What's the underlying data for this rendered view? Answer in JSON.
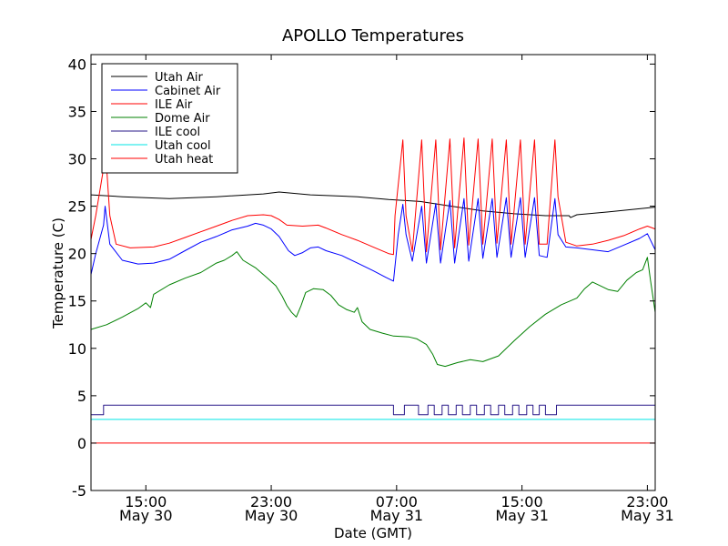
{
  "chart_data": {
    "type": "line",
    "title": "APOLLO Temperatures",
    "xlabel": "Date (GMT)",
    "ylabel": "Temperature (C)",
    "xlim": [
      0,
      36
    ],
    "ylim": [
      -5,
      41
    ],
    "yticks": [
      -5,
      0,
      5,
      10,
      15,
      20,
      25,
      30,
      35,
      40
    ],
    "ytick_labels": [
      "-5",
      "0",
      "5",
      "10",
      "15",
      "20",
      "25",
      "30",
      "35",
      "40"
    ],
    "xticks": [
      {
        "x": 3.5,
        "time": "15:00",
        "date": "May 30"
      },
      {
        "x": 11.5,
        "time": "23:00",
        "date": "May 30"
      },
      {
        "x": 19.5,
        "time": "07:00",
        "date": "May 31"
      },
      {
        "x": 27.5,
        "time": "15:00",
        "date": "May 31"
      },
      {
        "x": 35.5,
        "time": "23:00",
        "date": "May 31"
      }
    ],
    "legend_position": "top-left",
    "series": [
      {
        "name": "Utah Air",
        "color": "#000000",
        "points": [
          [
            0,
            26.2
          ],
          [
            2,
            26.0
          ],
          [
            5,
            25.8
          ],
          [
            8,
            26.0
          ],
          [
            11,
            26.3
          ],
          [
            12,
            26.5
          ],
          [
            14,
            26.2
          ],
          [
            17,
            26.0
          ],
          [
            19,
            25.7
          ],
          [
            21,
            25.5
          ],
          [
            23,
            25.0
          ],
          [
            25,
            24.5
          ],
          [
            27,
            24.2
          ],
          [
            29,
            24.0
          ],
          [
            30.5,
            24.0
          ],
          [
            30.6,
            23.8
          ],
          [
            31,
            24.1
          ],
          [
            33,
            24.4
          ],
          [
            36,
            24.9
          ]
        ]
      },
      {
        "name": "Cabinet Air",
        "color": "#0000ff",
        "points": [
          [
            0,
            17.8
          ],
          [
            0.3,
            20
          ],
          [
            0.8,
            23
          ],
          [
            0.9,
            25.0
          ],
          [
            1.2,
            21
          ],
          [
            2,
            19.3
          ],
          [
            3,
            18.9
          ],
          [
            4,
            19.0
          ],
          [
            5,
            19.4
          ],
          [
            6,
            20.3
          ],
          [
            7,
            21.2
          ],
          [
            8,
            21.8
          ],
          [
            9,
            22.5
          ],
          [
            10,
            22.9
          ],
          [
            10.5,
            23.2
          ],
          [
            11,
            23.0
          ],
          [
            11.5,
            22.6
          ],
          [
            12,
            21.8
          ],
          [
            12.6,
            20.3
          ],
          [
            13,
            19.8
          ],
          [
            13.5,
            20.1
          ],
          [
            14,
            20.6
          ],
          [
            14.5,
            20.7
          ],
          [
            15,
            20.3
          ],
          [
            16,
            19.8
          ],
          [
            17,
            19.0
          ],
          [
            18,
            18.2
          ],
          [
            18.8,
            17.5
          ],
          [
            19.3,
            17.1
          ],
          [
            19.6,
            22.0
          ],
          [
            19.9,
            25.2
          ],
          [
            20.1,
            22
          ],
          [
            20.5,
            19.2
          ],
          [
            21.1,
            25.0
          ],
          [
            21.4,
            19.0
          ],
          [
            22.0,
            25.3
          ],
          [
            22.3,
            19.0
          ],
          [
            22.9,
            25.6
          ],
          [
            23.2,
            19.0
          ],
          [
            23.8,
            25.8
          ],
          [
            24.1,
            19.2
          ],
          [
            24.7,
            25.8
          ],
          [
            25.0,
            19.5
          ],
          [
            25.6,
            25.8
          ],
          [
            25.9,
            19.6
          ],
          [
            26.5,
            25.9
          ],
          [
            26.8,
            19.6
          ],
          [
            27.4,
            25.9
          ],
          [
            27.7,
            19.6
          ],
          [
            28.3,
            25.9
          ],
          [
            28.6,
            19.8
          ],
          [
            29.1,
            19.6
          ],
          [
            29.6,
            25.8
          ],
          [
            29.8,
            22.0
          ],
          [
            30.3,
            20.7
          ],
          [
            31,
            20.6
          ],
          [
            32,
            20.4
          ],
          [
            33,
            20.2
          ],
          [
            34,
            20.9
          ],
          [
            35,
            21.6
          ],
          [
            35.5,
            22.1
          ],
          [
            36,
            20.4
          ]
        ]
      },
      {
        "name": "ILE Air",
        "color": "#ff0000",
        "points": [
          [
            0,
            21.5
          ],
          [
            0.3,
            24
          ],
          [
            0.8,
            29
          ],
          [
            0.9,
            31.5
          ],
          [
            1.2,
            24
          ],
          [
            1.6,
            21.0
          ],
          [
            2.5,
            20.6
          ],
          [
            4,
            20.7
          ],
          [
            5,
            21.1
          ],
          [
            6,
            21.7
          ],
          [
            7,
            22.3
          ],
          [
            8,
            22.9
          ],
          [
            9,
            23.5
          ],
          [
            10,
            24.0
          ],
          [
            11,
            24.1
          ],
          [
            11.5,
            24.0
          ],
          [
            12,
            23.6
          ],
          [
            12.5,
            23.0
          ],
          [
            13.5,
            22.9
          ],
          [
            14.5,
            23.0
          ],
          [
            15,
            22.7
          ],
          [
            16,
            22.0
          ],
          [
            17,
            21.4
          ],
          [
            18,
            20.7
          ],
          [
            19,
            20.0
          ],
          [
            19.3,
            19.9
          ],
          [
            19.4,
            24
          ],
          [
            19.9,
            32.0
          ],
          [
            20.1,
            24
          ],
          [
            20.5,
            20.2
          ],
          [
            21.1,
            32.0
          ],
          [
            21.4,
            20.2
          ],
          [
            22.0,
            32.0
          ],
          [
            22.3,
            20.4
          ],
          [
            22.9,
            32.1
          ],
          [
            23.2,
            20.6
          ],
          [
            23.8,
            32.2
          ],
          [
            24.1,
            20.9
          ],
          [
            24.7,
            32.1
          ],
          [
            25.0,
            21.0
          ],
          [
            25.6,
            32.1
          ],
          [
            25.9,
            21.1
          ],
          [
            26.5,
            32.0
          ],
          [
            26.8,
            21.0
          ],
          [
            27.4,
            32.0
          ],
          [
            27.7,
            21.0
          ],
          [
            28.3,
            32.0
          ],
          [
            28.6,
            21.0
          ],
          [
            29.1,
            21.0
          ],
          [
            29.6,
            32.0
          ],
          [
            29.8,
            26
          ],
          [
            30.3,
            21.2
          ],
          [
            31,
            20.8
          ],
          [
            32,
            21.0
          ],
          [
            33,
            21.4
          ],
          [
            34,
            21.9
          ],
          [
            35,
            22.6
          ],
          [
            35.5,
            22.9
          ],
          [
            36,
            22.6
          ]
        ]
      },
      {
        "name": "Dome Air",
        "color": "#008000",
        "points": [
          [
            0,
            12.0
          ],
          [
            1,
            12.5
          ],
          [
            2,
            13.3
          ],
          [
            3,
            14.2
          ],
          [
            3.5,
            14.8
          ],
          [
            3.8,
            14.3
          ],
          [
            4,
            15.7
          ],
          [
            5,
            16.7
          ],
          [
            6,
            17.4
          ],
          [
            7,
            18.0
          ],
          [
            8,
            19.0
          ],
          [
            8.5,
            19.3
          ],
          [
            9,
            19.8
          ],
          [
            9.3,
            20.2
          ],
          [
            9.7,
            19.3
          ],
          [
            10.5,
            18.5
          ],
          [
            11.2,
            17.5
          ],
          [
            11.8,
            16.6
          ],
          [
            12.2,
            15.5
          ],
          [
            12.5,
            14.5
          ],
          [
            12.8,
            13.8
          ],
          [
            13.1,
            13.3
          ],
          [
            13.4,
            14.5
          ],
          [
            13.7,
            15.9
          ],
          [
            14.2,
            16.3
          ],
          [
            14.8,
            16.2
          ],
          [
            15.3,
            15.6
          ],
          [
            15.8,
            14.6
          ],
          [
            16.3,
            14.1
          ],
          [
            16.8,
            13.8
          ],
          [
            17.0,
            14.3
          ],
          [
            17.3,
            12.8
          ],
          [
            17.8,
            12.0
          ],
          [
            18.6,
            11.6
          ],
          [
            19.3,
            11.3
          ],
          [
            20.3,
            11.2
          ],
          [
            20.8,
            11.0
          ],
          [
            21.4,
            10.4
          ],
          [
            21.8,
            9.4
          ],
          [
            22.1,
            8.3
          ],
          [
            22.6,
            8.1
          ],
          [
            23.4,
            8.5
          ],
          [
            24.2,
            8.8
          ],
          [
            25,
            8.6
          ],
          [
            26,
            9.2
          ],
          [
            27,
            10.8
          ],
          [
            28,
            12.3
          ],
          [
            29,
            13.6
          ],
          [
            30,
            14.6
          ],
          [
            31,
            15.3
          ],
          [
            31.5,
            16.3
          ],
          [
            32,
            17.0
          ],
          [
            32.5,
            16.6
          ],
          [
            33,
            16.2
          ],
          [
            33.6,
            16.0
          ],
          [
            34.2,
            17.2
          ],
          [
            34.8,
            18.0
          ],
          [
            35.2,
            18.3
          ],
          [
            35.5,
            19.6
          ],
          [
            35.7,
            17.2
          ],
          [
            36,
            13.8
          ]
        ]
      },
      {
        "name": "ILE cool",
        "color": "#2a1a8a",
        "points": [
          [
            0,
            1.9
          ],
          [
            0,
            3.0
          ],
          [
            0.8,
            3.0
          ],
          [
            0.8,
            4.0
          ],
          [
            19.3,
            4.0
          ],
          [
            19.3,
            3.0
          ],
          [
            20.0,
            3.0
          ],
          [
            20.0,
            4.0
          ],
          [
            20.9,
            4.0
          ],
          [
            20.9,
            3.0
          ],
          [
            21.5,
            3.0
          ],
          [
            21.5,
            4.0
          ],
          [
            21.9,
            4.0
          ],
          [
            21.9,
            3.0
          ],
          [
            22.4,
            3.0
          ],
          [
            22.4,
            4.0
          ],
          [
            22.8,
            4.0
          ],
          [
            22.8,
            3.0
          ],
          [
            23.3,
            3.0
          ],
          [
            23.3,
            4.0
          ],
          [
            23.7,
            4.0
          ],
          [
            23.7,
            3.0
          ],
          [
            24.2,
            3.0
          ],
          [
            24.2,
            4.0
          ],
          [
            24.6,
            4.0
          ],
          [
            24.6,
            3.0
          ],
          [
            25.1,
            3.0
          ],
          [
            25.1,
            4.0
          ],
          [
            25.5,
            4.0
          ],
          [
            25.5,
            3.0
          ],
          [
            26.0,
            3.0
          ],
          [
            26.0,
            4.0
          ],
          [
            26.4,
            4.0
          ],
          [
            26.4,
            3.0
          ],
          [
            26.9,
            3.0
          ],
          [
            26.9,
            4.0
          ],
          [
            27.3,
            4.0
          ],
          [
            27.3,
            3.0
          ],
          [
            27.8,
            3.0
          ],
          [
            27.8,
            4.0
          ],
          [
            28.2,
            4.0
          ],
          [
            28.2,
            3.0
          ],
          [
            28.6,
            3.0
          ],
          [
            28.6,
            4.0
          ],
          [
            29.0,
            4.0
          ],
          [
            29.0,
            3.0
          ],
          [
            29.7,
            3.0
          ],
          [
            29.7,
            4.0
          ],
          [
            36,
            4.0
          ]
        ]
      },
      {
        "name": "Utah cool",
        "color": "#00e5e5",
        "points": [
          [
            0,
            2.5
          ],
          [
            36,
            2.5
          ]
        ]
      },
      {
        "name": "Utah heat",
        "color": "#ff0000",
        "points": [
          [
            0,
            0
          ],
          [
            36,
            0
          ]
        ]
      }
    ]
  }
}
